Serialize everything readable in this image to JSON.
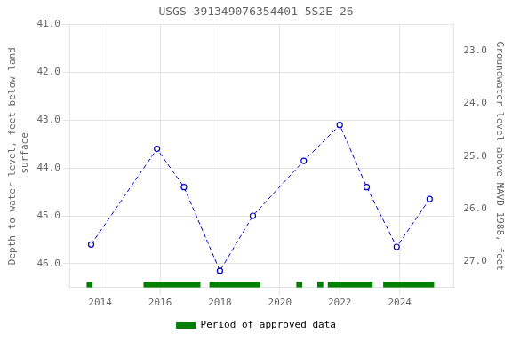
{
  "chart_data": {
    "type": "line",
    "title": "USGS 391349076354401 5S2E-26",
    "y_label": "Depth to water level, feet below land\n surface",
    "y2_label": "Groundwater level above NAVD 1988, feet",
    "x": [
      2013.7,
      2015.9,
      2016.8,
      2018.0,
      2019.1,
      2020.8,
      2022.0,
      2022.9,
      2023.9,
      2025.0
    ],
    "values": [
      45.6,
      43.6,
      44.4,
      46.15,
      45.0,
      43.85,
      43.1,
      44.4,
      45.65,
      44.65
    ],
    "color": "#0000cc",
    "line_style": "dashed",
    "marker": "circle",
    "xlim": [
      2013.0,
      2025.8
    ],
    "xticks": [
      2014,
      2016,
      2018,
      2020,
      2022,
      2024
    ],
    "ylim": [
      46.5,
      41.0
    ],
    "yticks": [
      {
        "value": 41,
        "label": "41.0"
      },
      {
        "value": 42,
        "label": "42.0"
      },
      {
        "value": 43,
        "label": "43.0"
      },
      {
        "value": 44,
        "label": "44.0"
      },
      {
        "value": 45,
        "label": "45.0"
      },
      {
        "value": 46,
        "label": "46.0"
      }
    ],
    "y2lim": [
      27.5,
      22.5
    ],
    "y2ticks": [
      {
        "value": 27,
        "label": "27.0"
      },
      {
        "value": 26,
        "label": "26.0"
      },
      {
        "value": 25,
        "label": "25.0"
      },
      {
        "value": 24,
        "label": "24.0"
      },
      {
        "value": 23,
        "label": "23.0"
      }
    ],
    "grid": true,
    "legend": "bottom",
    "periods": {
      "name": "Period of approved data",
      "color": "#008000",
      "ranges": [
        [
          2013.55,
          2013.75
        ],
        [
          2015.45,
          2017.35
        ],
        [
          2017.65,
          2019.35
        ],
        [
          2020.55,
          2020.75
        ],
        [
          2021.25,
          2021.45
        ],
        [
          2021.6,
          2023.1
        ],
        [
          2023.45,
          2025.15
        ]
      ]
    }
  }
}
